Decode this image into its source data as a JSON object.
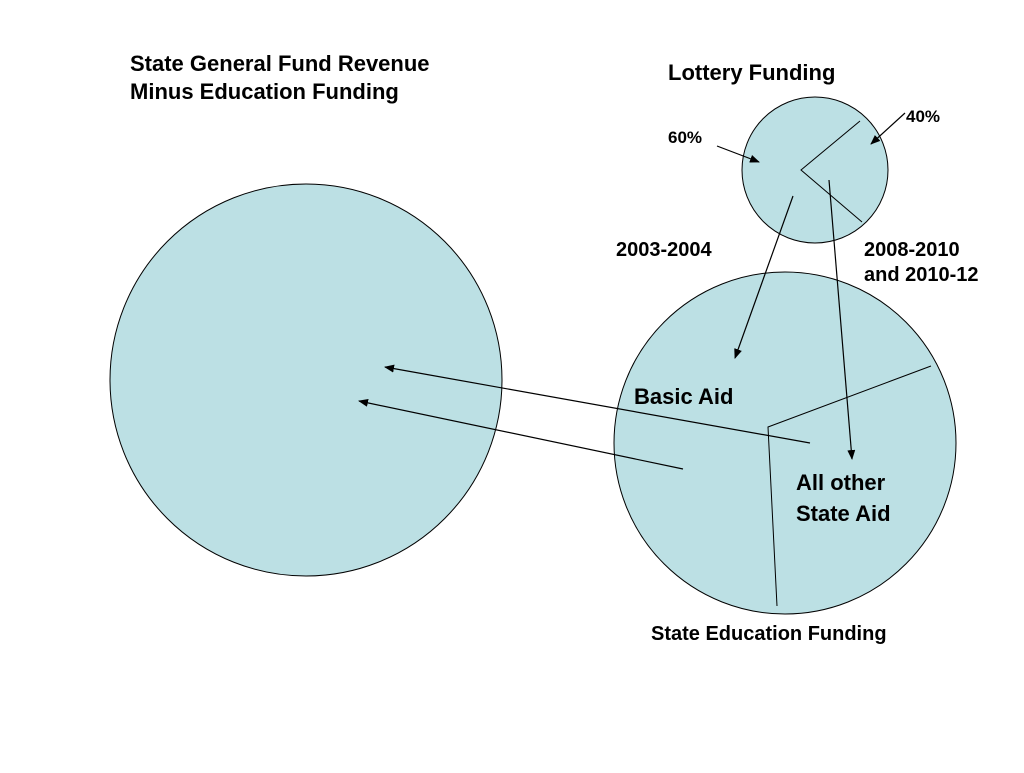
{
  "diagram": {
    "circle_fill": "#bce0e4",
    "stroke_color": "#000000",
    "general_fund_title_line1": "State General Fund Revenue",
    "general_fund_title_line2": "Minus Education Funding",
    "lottery_title": "Lottery Funding",
    "lottery_share_60": "60%",
    "lottery_share_40": "40%",
    "period_left": "2003-2004",
    "period_right_line1": "2008-2010",
    "period_right_line2": "and 2010-12",
    "basic_aid_label": "Basic Aid",
    "other_aid_line1": "All other",
    "other_aid_line2": "State Aid",
    "education_title": "State Education Funding"
  }
}
